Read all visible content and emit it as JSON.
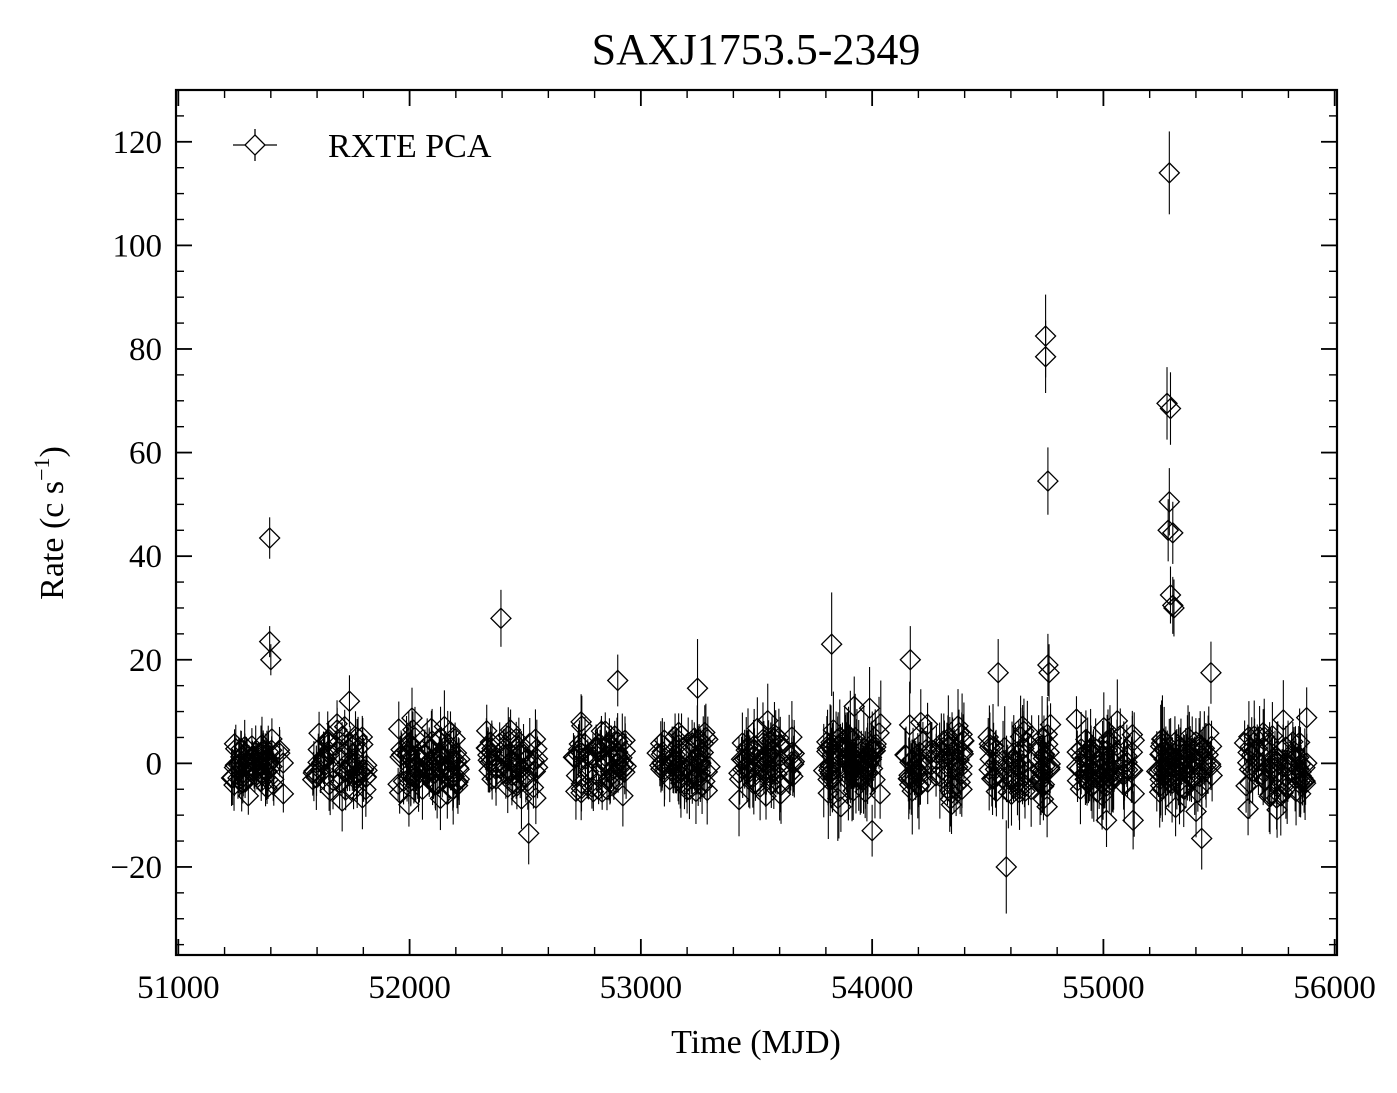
{
  "chart_data": {
    "type": "scatter",
    "title": "SAXJ1753.5-2349",
    "xlabel": "Time (MJD)",
    "ylabel": {
      "text": "Rate (c s",
      "sup": "−1",
      "close": ")"
    },
    "xlim": [
      50990,
      56010
    ],
    "ylim": [
      -37,
      130
    ],
    "xticks": [
      51000,
      52000,
      53000,
      54000,
      55000,
      56000
    ],
    "xtick_labels": [
      "51000",
      "52000",
      "53000",
      "54000",
      "55000",
      "56000"
    ],
    "yticks": [
      -20,
      0,
      20,
      40,
      60,
      80,
      100,
      120
    ],
    "ytick_labels": [
      "−20",
      "0",
      "20",
      "40",
      "60",
      "80",
      "100",
      "120"
    ],
    "grid": false,
    "legend": {
      "position": "top-left",
      "entries": [
        "RXTE PCA"
      ]
    },
    "marker": "open-diamond",
    "color": "#000000",
    "series": [
      {
        "name": "RXTE PCA",
        "outliers": [
          {
            "x": 51395,
            "y": 43.5,
            "err": 4.0
          },
          {
            "x": 51395,
            "y": 23.5,
            "err": 3.0
          },
          {
            "x": 51400,
            "y": 20.0,
            "err": 3.0
          },
          {
            "x": 51740,
            "y": 12.0,
            "err": 5.0
          },
          {
            "x": 52395,
            "y": 28.0,
            "err": 5.5
          },
          {
            "x": 52515,
            "y": -13.5,
            "err": 6.0
          },
          {
            "x": 52900,
            "y": 16.0,
            "err": 5.0
          },
          {
            "x": 53245,
            "y": 14.5,
            "err": 9.5
          },
          {
            "x": 53825,
            "y": 23.0,
            "err": 10.0
          },
          {
            "x": 54000,
            "y": -13.0,
            "err": 5.0
          },
          {
            "x": 54165,
            "y": 20.0,
            "err": 6.5
          },
          {
            "x": 54545,
            "y": 17.5,
            "err": 6.5
          },
          {
            "x": 54580,
            "y": -20.0,
            "err": 9.0
          },
          {
            "x": 54750,
            "y": 82.5,
            "err": 8.0
          },
          {
            "x": 54750,
            "y": 78.5,
            "err": 7.0
          },
          {
            "x": 54760,
            "y": 54.5,
            "err": 6.5
          },
          {
            "x": 54760,
            "y": 19.0,
            "err": 6.0
          },
          {
            "x": 54765,
            "y": 17.5,
            "err": 5.5
          },
          {
            "x": 55285,
            "y": 114.0,
            "err": 8.0
          },
          {
            "x": 55275,
            "y": 69.5,
            "err": 7.0
          },
          {
            "x": 55290,
            "y": 68.5,
            "err": 7.0
          },
          {
            "x": 55285,
            "y": 50.5,
            "err": 6.5
          },
          {
            "x": 55280,
            "y": 45.0,
            "err": 6.0
          },
          {
            "x": 55300,
            "y": 44.5,
            "err": 6.0
          },
          {
            "x": 55290,
            "y": 32.5,
            "err": 5.5
          },
          {
            "x": 55300,
            "y": 30.5,
            "err": 5.5
          },
          {
            "x": 55305,
            "y": 30.0,
            "err": 5.5
          },
          {
            "x": 55465,
            "y": 17.5,
            "err": 6.0
          },
          {
            "x": 55425,
            "y": -14.5,
            "err": 6.0
          }
        ],
        "clusters": [
          {
            "x_start": 51220,
            "x_end": 51460,
            "n": 70,
            "sigma": 2.6,
            "err": 4.0
          },
          {
            "x_start": 51580,
            "x_end": 51820,
            "n": 60,
            "sigma": 3.0,
            "err": 4.5
          },
          {
            "x_start": 51950,
            "x_end": 52220,
            "n": 85,
            "sigma": 3.3,
            "err": 5.0
          },
          {
            "x_start": 52330,
            "x_end": 52560,
            "n": 55,
            "sigma": 3.2,
            "err": 4.5
          },
          {
            "x_start": 52700,
            "x_end": 52940,
            "n": 65,
            "sigma": 3.0,
            "err": 4.5
          },
          {
            "x_start": 53060,
            "x_end": 53300,
            "n": 70,
            "sigma": 3.3,
            "err": 5.0
          },
          {
            "x_start": 53420,
            "x_end": 53670,
            "n": 65,
            "sigma": 3.3,
            "err": 5.5
          },
          {
            "x_start": 53790,
            "x_end": 54040,
            "n": 80,
            "sigma": 4.0,
            "err": 6.5
          },
          {
            "x_start": 54140,
            "x_end": 54400,
            "n": 70,
            "sigma": 3.8,
            "err": 6.0
          },
          {
            "x_start": 54500,
            "x_end": 54780,
            "n": 70,
            "sigma": 4.0,
            "err": 6.0
          },
          {
            "x_start": 54880,
            "x_end": 55140,
            "n": 75,
            "sigma": 4.0,
            "err": 6.0
          },
          {
            "x_start": 55230,
            "x_end": 55480,
            "n": 75,
            "sigma": 3.8,
            "err": 6.0
          },
          {
            "x_start": 55610,
            "x_end": 55880,
            "n": 75,
            "sigma": 3.7,
            "err": 5.5
          }
        ]
      }
    ]
  }
}
